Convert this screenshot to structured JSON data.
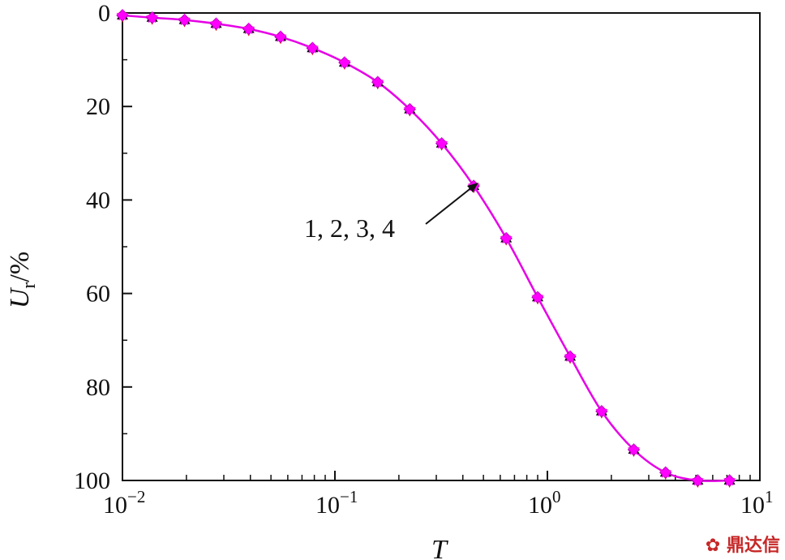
{
  "chart_data": {
    "type": "line",
    "xlabel": "T",
    "ylabel_main": "U",
    "ylabel_sub": "r",
    "ylabel_unit": "/%",
    "x_scale": "log",
    "xlim": [
      0.01,
      10
    ],
    "ylim": [
      0,
      100
    ],
    "y_inverted": true,
    "x_ticks": [
      {
        "base": "10",
        "exp": "−2"
      },
      {
        "base": "10",
        "exp": "−1"
      },
      {
        "base": "10",
        "exp": "0"
      },
      {
        "base": "10",
        "exp": "1"
      }
    ],
    "y_ticks": [
      "0",
      "20",
      "40",
      "60",
      "80",
      "100"
    ],
    "annotation": "1, 2, 3, 4",
    "colors": {
      "line": "#e600e6",
      "marker_black": "#000000",
      "marker_red": "#ff0000",
      "marker_magenta": "#ff00ff"
    },
    "x": [
      0.01,
      0.0138,
      0.0196,
      0.0276,
      0.0393,
      0.0555,
      0.0784,
      0.111,
      0.159,
      0.225,
      0.318,
      0.45,
      0.64,
      0.9,
      1.28,
      1.8,
      2.55,
      3.6,
      5.1,
      7.2
    ],
    "series": [
      {
        "name": "1",
        "marker": "triangle-up",
        "values": [
          0.5,
          1.0,
          1.5,
          2.3,
          3.4,
          5.1,
          7.5,
          10.6,
          14.8,
          20.6,
          27.9,
          37.0,
          48.2,
          60.8,
          73.5,
          85.2,
          93.4,
          98.3,
          100.0,
          100.0
        ]
      },
      {
        "name": "2",
        "marker": "triangle-down",
        "values": [
          0.5,
          1.0,
          1.5,
          2.3,
          3.4,
          5.1,
          7.5,
          10.6,
          14.8,
          20.6,
          27.9,
          37.0,
          48.2,
          60.8,
          73.5,
          85.2,
          93.4,
          98.3,
          100.0,
          100.0
        ]
      },
      {
        "name": "3",
        "marker": "diamond",
        "values": [
          0.5,
          1.0,
          1.5,
          2.3,
          3.4,
          5.1,
          7.5,
          10.6,
          14.8,
          20.6,
          27.9,
          37.0,
          48.2,
          60.8,
          73.5,
          85.2,
          93.4,
          98.3,
          100.0,
          100.0
        ]
      },
      {
        "name": "4",
        "marker": "star",
        "values": [
          0.5,
          1.0,
          1.5,
          2.3,
          3.4,
          5.1,
          7.5,
          10.6,
          14.8,
          20.6,
          27.9,
          37.0,
          48.2,
          60.8,
          73.5,
          85.2,
          93.4,
          98.3,
          100.0,
          100.0
        ]
      }
    ]
  },
  "watermark": {
    "symbol": "✿",
    "text": "鼎达信"
  }
}
